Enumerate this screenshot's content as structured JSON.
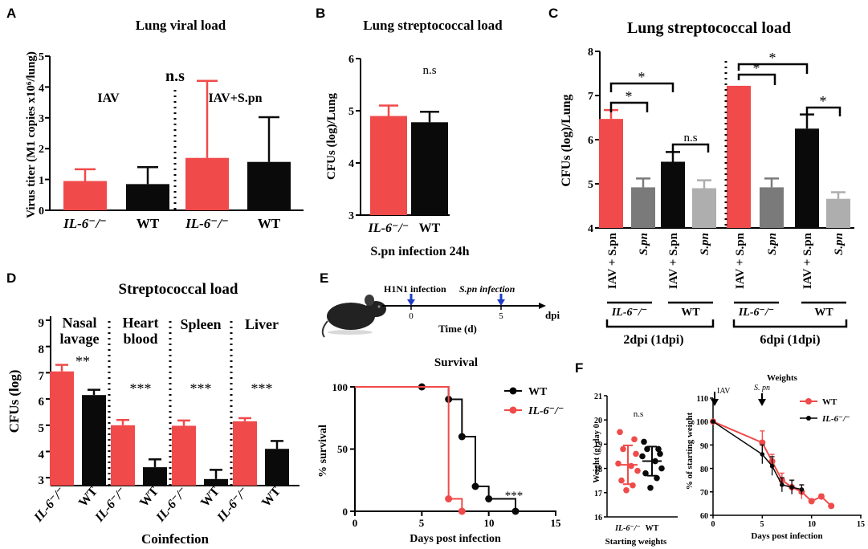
{
  "colors": {
    "red": "#f04a4a",
    "black": "#0a0a0a",
    "darkgray": "#7a7a7a",
    "lightgray": "#aeaeae",
    "blue": "#1f3cc4"
  },
  "panelA": {
    "letter": "A",
    "title": "Lung viral load",
    "ylabel": "Virus titer (M1 copies x10⁶/lung)",
    "ticks": [
      "0",
      "1",
      "2",
      "3",
      "4",
      "5"
    ],
    "groupLeft": "IAV",
    "groupRight": "IAV+S.pn",
    "sig": "n.s",
    "xlabels": [
      "IL-6⁻/⁻",
      "WT",
      "IL-6⁻/⁻",
      "WT"
    ]
  },
  "panelB": {
    "letter": "B",
    "title": "Lung streptococcal load",
    "ylabel": "CFUs (log)/Lung",
    "ticks": [
      "3",
      "4",
      "5",
      "6"
    ],
    "sig": "n.s",
    "xlabels": [
      "IL-6⁻/⁻",
      "WT"
    ],
    "footer": "S.pn infection 24h"
  },
  "panelC": {
    "letter": "C",
    "title": "Lung streptococcal load",
    "ylabel": "CFUs (log)/Lung",
    "ticks": [
      "4",
      "5",
      "6",
      "7",
      "8"
    ],
    "barlabels": [
      "IAV + S.pn",
      "S.pn",
      "IAV + S.pn",
      "S.pn",
      "IAV + S.pn",
      "S.pn",
      "IAV + S.pn",
      "S.pn"
    ],
    "genotypes": [
      "IL-6⁻/⁻",
      "WT",
      "IL-6⁻/⁻",
      "WT"
    ],
    "timepoints": [
      "2dpi (1dpi)",
      "6dpi (1dpi)"
    ],
    "sig": [
      "*",
      "*",
      "n.s",
      "*",
      "*",
      "*"
    ]
  },
  "panelD": {
    "letter": "D",
    "title": "Streptococcal load",
    "ylabel": "CFUs (log)",
    "xtitle": "Coinfection",
    "ticks": [
      "3",
      "4",
      "5",
      "6",
      "7",
      "8",
      "9"
    ],
    "groups": [
      {
        "l1": "Nasal",
        "l2": "lavage",
        "sig": "**"
      },
      {
        "l1": "Heart",
        "l2": "blood",
        "sig": "***"
      },
      {
        "l1": "Spleen",
        "l2": "",
        "sig": "***"
      },
      {
        "l1": "Liver",
        "l2": "",
        "sig": "***"
      }
    ],
    "xlabels": [
      "IL-6⁻/⁻",
      "WT",
      "IL-6⁻/⁻",
      "WT",
      "IL-6⁻/⁻",
      "WT",
      "IL-6⁻/⁻",
      "WT"
    ]
  },
  "panelE": {
    "letter": "E",
    "tl_h1n1": "H1N1 infection",
    "tl_spn": "S.pn infection",
    "tl_t0": "0",
    "tl_t5": "5",
    "tl_xlabel": "Time (d)",
    "tl_unit": "dpi",
    "title": "Survival",
    "ylabel": "% survival",
    "xlabel": "Days post infection",
    "yticks": [
      "0",
      "50",
      "100"
    ],
    "xticks": [
      "0",
      "5",
      "10",
      "15"
    ],
    "legend": [
      "WT",
      "IL-6⁻/⁻"
    ],
    "sig": "***"
  },
  "panelF": {
    "letter": "F",
    "title": "Weights",
    "left_ylabel": "Weight (g) day 0",
    "left_xlabels": [
      "IL-6⁻/⁻",
      "WT"
    ],
    "left_xtitle": "Starting weights",
    "left_sig": "n.s",
    "left_ticks": [
      "16",
      "17",
      "18",
      "19",
      "20",
      "21"
    ],
    "right_ylabel": "% of starting weight",
    "right_xlabel": "Days post infection",
    "right_yticks": [
      "60",
      "70",
      "80",
      "90",
      "100",
      "110"
    ],
    "right_xticks": [
      "0",
      "5",
      "10",
      "15"
    ],
    "arrow_iav": "IAV",
    "arrow_spn": "S. pn",
    "legend": [
      "WT",
      "IL-6⁻/⁻"
    ]
  },
  "chart_data": [
    {
      "type": "bar",
      "title": "Lung viral load",
      "ylabel": "Virus titer (M1 copies x10⁶/lung)",
      "ylim": [
        0,
        5
      ],
      "categories": [
        "IAV IL-6⁻/⁻",
        "IAV WT",
        "IAV+S.pn IL-6⁻/⁻",
        "IAV+S.pn WT"
      ],
      "values": [
        0.95,
        0.85,
        1.7,
        1.57
      ],
      "errors": [
        0.38,
        0.55,
        2.5,
        1.45
      ],
      "colors": [
        "red",
        "black",
        "red",
        "black"
      ]
    },
    {
      "type": "bar",
      "title": "Lung streptococcal load",
      "ylabel": "CFUs (log)/Lung",
      "ylim": [
        3,
        6
      ],
      "categories": [
        "IL-6⁻/⁻",
        "WT"
      ],
      "values": [
        4.9,
        4.78
      ],
      "errors": [
        0.2,
        0.2
      ],
      "colors": [
        "red",
        "black"
      ]
    },
    {
      "type": "bar",
      "title": "Lung streptococcal load",
      "ylabel": "CFUs (log)/Lung",
      "ylim": [
        4,
        8
      ],
      "categories": [
        "2dpi IL-6⁻/⁻ IAV+S.pn",
        "2dpi IL-6⁻/⁻ S.pn",
        "2dpi WT IAV+S.pn",
        "2dpi WT S.pn",
        "6dpi IL-6⁻/⁻ IAV+S.pn",
        "6dpi IL-6⁻/⁻ S.pn",
        "6dpi WT IAV+S.pn",
        "6dpi WT S.pn"
      ],
      "values": [
        6.47,
        4.92,
        5.5,
        4.9,
        7.22,
        4.92,
        6.25,
        4.66
      ],
      "errors": [
        0.2,
        0.2,
        0.22,
        0.18,
        0,
        0.2,
        0.32,
        0.15
      ],
      "colors": [
        "red",
        "darkgray",
        "black",
        "lightgray",
        "red",
        "darkgray",
        "black",
        "lightgray"
      ]
    },
    {
      "type": "bar",
      "title": "Streptococcal load",
      "ylabel": "CFUs (log)",
      "ylim": [
        2.7,
        9
      ],
      "categories": [
        "Nasal lavage IL-6⁻/⁻",
        "Nasal lavage WT",
        "Heart blood IL-6⁻/⁻",
        "Heart blood WT",
        "Spleen IL-6⁻/⁻",
        "Spleen WT",
        "Liver IL-6⁻/⁻",
        "Liver WT"
      ],
      "values": [
        7.05,
        6.15,
        5.0,
        3.4,
        4.98,
        2.95,
        5.15,
        4.1
      ],
      "errors": [
        0.25,
        0.2,
        0.2,
        0.3,
        0.2,
        0.35,
        0.12,
        0.3
      ],
      "colors": [
        "red",
        "black",
        "red",
        "black",
        "red",
        "black",
        "red",
        "black"
      ]
    },
    {
      "type": "line",
      "title": "Survival",
      "xlabel": "Days post infection",
      "ylabel": "% survival",
      "xlim": [
        0,
        15
      ],
      "ylim": [
        0,
        100
      ],
      "series": [
        {
          "name": "WT",
          "x": [
            5,
            7,
            8,
            9,
            10,
            12
          ],
          "y": [
            100,
            90,
            60,
            20,
            10,
            0
          ]
        },
        {
          "name": "IL-6⁻/⁻",
          "x": [
            0,
            7,
            8
          ],
          "y": [
            100,
            10,
            0
          ]
        }
      ]
    },
    {
      "type": "scatter",
      "title": "Starting weights",
      "ylabel": "Weight (g) day 0",
      "ylim": [
        16,
        21
      ],
      "series": [
        {
          "name": "IL-6⁻/⁻",
          "values": [
            19.5,
            19.2,
            18.8,
            18.6,
            18.2,
            18.1,
            17.9,
            17.5,
            17.3,
            17.1
          ],
          "mean": 18.15,
          "sd": 0.8
        },
        {
          "name": "WT",
          "values": [
            19.1,
            18.8,
            18.8,
            18.6,
            18.5,
            18.3,
            18.0,
            17.8,
            17.6,
            17.2
          ],
          "mean": 18.3,
          "sd": 0.6
        }
      ]
    },
    {
      "type": "line",
      "title": "Weights",
      "xlabel": "Days post infection",
      "ylabel": "% of starting weight",
      "xlim": [
        0,
        15
      ],
      "ylim": [
        60,
        110
      ],
      "series": [
        {
          "name": "WT",
          "x": [
            0,
            5,
            6,
            7,
            8,
            9,
            10,
            11,
            12
          ],
          "y": [
            100,
            91,
            83,
            75,
            72,
            70,
            66,
            68,
            64
          ],
          "err": [
            0,
            5,
            3,
            3,
            3,
            3,
            1,
            1,
            0
          ]
        },
        {
          "name": "IL-6⁻/⁻",
          "x": [
            0,
            5,
            6,
            7,
            8,
            9
          ],
          "y": [
            100,
            86,
            81,
            73,
            72,
            71
          ],
          "err": [
            0,
            4,
            4,
            3,
            3,
            2
          ]
        }
      ]
    }
  ]
}
